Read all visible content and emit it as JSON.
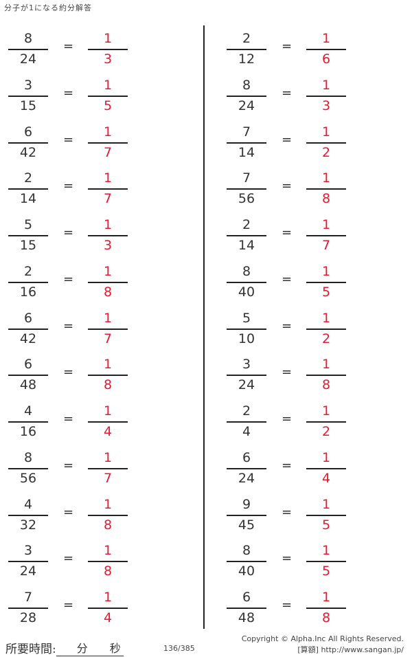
{
  "title": "分子が1になる約分解答",
  "left": [
    {
      "num": "8",
      "den": "24",
      "ans_num": "1",
      "ans_den": "3"
    },
    {
      "num": "3",
      "den": "15",
      "ans_num": "1",
      "ans_den": "5"
    },
    {
      "num": "6",
      "den": "42",
      "ans_num": "1",
      "ans_den": "7"
    },
    {
      "num": "2",
      "den": "14",
      "ans_num": "1",
      "ans_den": "7"
    },
    {
      "num": "5",
      "den": "15",
      "ans_num": "1",
      "ans_den": "3"
    },
    {
      "num": "2",
      "den": "16",
      "ans_num": "1",
      "ans_den": "8"
    },
    {
      "num": "6",
      "den": "42",
      "ans_num": "1",
      "ans_den": "7"
    },
    {
      "num": "6",
      "den": "48",
      "ans_num": "1",
      "ans_den": "8"
    },
    {
      "num": "4",
      "den": "16",
      "ans_num": "1",
      "ans_den": "4"
    },
    {
      "num": "8",
      "den": "56",
      "ans_num": "1",
      "ans_den": "7"
    },
    {
      "num": "4",
      "den": "32",
      "ans_num": "1",
      "ans_den": "8"
    },
    {
      "num": "3",
      "den": "24",
      "ans_num": "1",
      "ans_den": "8"
    },
    {
      "num": "7",
      "den": "28",
      "ans_num": "1",
      "ans_den": "4"
    }
  ],
  "right": [
    {
      "num": "2",
      "den": "12",
      "ans_num": "1",
      "ans_den": "6"
    },
    {
      "num": "8",
      "den": "24",
      "ans_num": "1",
      "ans_den": "3"
    },
    {
      "num": "7",
      "den": "14",
      "ans_num": "1",
      "ans_den": "2"
    },
    {
      "num": "7",
      "den": "56",
      "ans_num": "1",
      "ans_den": "8"
    },
    {
      "num": "2",
      "den": "14",
      "ans_num": "1",
      "ans_den": "7"
    },
    {
      "num": "8",
      "den": "40",
      "ans_num": "1",
      "ans_den": "5"
    },
    {
      "num": "5",
      "den": "10",
      "ans_num": "1",
      "ans_den": "2"
    },
    {
      "num": "3",
      "den": "24",
      "ans_num": "1",
      "ans_den": "8"
    },
    {
      "num": "2",
      "den": "4",
      "ans_num": "1",
      "ans_den": "2"
    },
    {
      "num": "6",
      "den": "24",
      "ans_num": "1",
      "ans_den": "4"
    },
    {
      "num": "9",
      "den": "45",
      "ans_num": "1",
      "ans_den": "5"
    },
    {
      "num": "8",
      "den": "40",
      "ans_num": "1",
      "ans_den": "5"
    },
    {
      "num": "6",
      "den": "48",
      "ans_num": "1",
      "ans_den": "8"
    }
  ],
  "equals": "=",
  "footer": {
    "time_label": "所要時間:",
    "minutes": "分",
    "seconds": "秒",
    "page": "136/385",
    "copyright": "Copyright ©  Alpha.Inc All Rights Reserved.",
    "site": "[算額] http://www.sangan.jp/"
  },
  "colors": {
    "answer": "#e8192c",
    "text": "#333333"
  }
}
